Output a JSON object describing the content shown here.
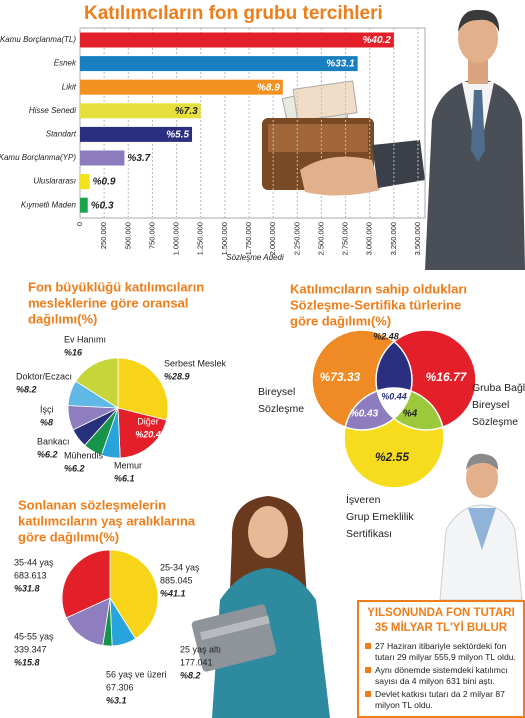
{
  "chart_data": [
    {
      "type": "bar",
      "title": "Katılımcıların fon grubu tercihleri",
      "categories": [
        "Kamu Borçlanma(TL)",
        "Esnek",
        "Likit",
        "Hisse Senedi",
        "Standart",
        "Kamu Borçlanma(YP)",
        "Uluslararası",
        "Kıymetli Maden"
      ],
      "values": [
        3250000,
        2875000,
        2100000,
        1250000,
        1160000,
        460000,
        100000,
        80000
      ],
      "share_labels": [
        "%40.2",
        "%33.1",
        "%8.9",
        "%7.3",
        "%5.5",
        "%3.7",
        "%0.9",
        "%0.3"
      ],
      "colors": [
        "#e3202a",
        "#1a7fc1",
        "#f39121",
        "#e4df3a",
        "#2b2f7f",
        "#8c7bbd",
        "#f3e21a",
        "#1ba34a"
      ],
      "xlabel": "Sözleşme Adedi",
      "xlim": [
        0,
        3500000
      ],
      "xticks": [
        0,
        {
          "value": 250000,
          "label": "250.000"
        },
        {
          "value": 500000,
          "label": "500.000"
        },
        {
          "value": 750000,
          "label": "750.000"
        },
        {
          "value": 1000000,
          "label": "1.000.000"
        },
        {
          "value": 1250000,
          "label": "1.250.000"
        },
        {
          "value": 1500000,
          "label": "1.500.000"
        },
        {
          "value": 1750000,
          "label": "1.750.000"
        },
        {
          "value": 2000000,
          "label": "2.000.000"
        },
        {
          "value": 2250000,
          "label": "2.250.000"
        },
        {
          "value": 2500000,
          "label": "2.500.000"
        },
        {
          "value": 2750000,
          "label": "2.750.000"
        },
        {
          "value": 3000000,
          "label": "3.000.000"
        },
        {
          "value": 3250000,
          "label": "3.250.000"
        },
        {
          "value": 3500000,
          "label": "3.500.000"
        }
      ],
      "grid": true
    },
    {
      "type": "pie",
      "title": [
        "Fon büyüklüğü katılımcıların",
        "mesleklerine göre oransal",
        "dağılımı(%)"
      ],
      "categories": [
        "Serbest Meslek",
        "Diğer",
        "Memur",
        "Mühendis",
        "Bankacı",
        "İşçi",
        "Doktor/Eczacı",
        "Ev Hanımı"
      ],
      "values": [
        28.9,
        20.4,
        6.1,
        6.2,
        6.2,
        8,
        8.2,
        16
      ],
      "value_labels": [
        "%28.9",
        "%20.4",
        "%6.1",
        "%6.2",
        "%6.2",
        "%8",
        "%8.2",
        "%16"
      ],
      "colors": [
        "#f7d417",
        "#e3202a",
        "#29a3dc",
        "#17944a",
        "#27307a",
        "#8e7dbf",
        "#5fb8e6",
        "#c6d63a"
      ]
    },
    {
      "type": "venn",
      "title": [
        "Katılımcıların sahip oldukları",
        "Sözleşme-Sertifika türlerine",
        "göre dağılımı(%)"
      ],
      "sets": [
        [
          "Bireysel",
          "Sözleşme"
        ],
        [
          "Gruba Bağlı",
          "Bireysel",
          "Sözleşme"
        ],
        [
          "İşveren",
          "Grup Emeklilik",
          "Sertifikası"
        ]
      ],
      "values": [
        73.33,
        16.77,
        2.55,
        2.48,
        0.43,
        4,
        0.44
      ],
      "value_labels": [
        "%73.33",
        "%16.77",
        "%2.55",
        "%2.48",
        "%0.43",
        "%4",
        "%0.44"
      ],
      "colors": [
        "#f08a24",
        "#e3202a",
        "#f7dc1e",
        "#2a2f7f",
        "#8d7dbf",
        "#9cc93b",
        "#ffffff"
      ]
    },
    {
      "type": "pie",
      "title": [
        "Sonlanan sözleşmelerin",
        "katılımcıların yaş aralıklarına",
        "göre dağılımı(%)"
      ],
      "categories": [
        "25-34 yaş",
        "25 yaş altı",
        "56 yaş ve üzeri",
        "45-55 yaş",
        "35-44 yaş"
      ],
      "count_labels": [
        "885.045",
        "177.041",
        "67.306",
        "339.347",
        "683.613"
      ],
      "values": [
        41.1,
        8.2,
        3.1,
        15.8,
        31.8
      ],
      "value_labels": [
        "%41.1",
        "%8.2",
        "%3.1",
        "%15.8",
        "%31.8"
      ],
      "colors": [
        "#f7d417",
        "#29a3dc",
        "#17944a",
        "#8e7dbf",
        "#e3202a"
      ]
    }
  ],
  "news_box": {
    "title": [
      "YILSONUNDA FON TUTARI",
      "35 MİLYAR TL'Yİ BULUR"
    ],
    "bullets": [
      "27 Haziran itibariyle sektördeki fon tutarı 29 milyar 555,9 milyon TL oldu.",
      "Aynı dönemde sistemdeki katılımcı sayısı da 4 milyon 631 bini aştı.",
      "Devlet katkısı tutarı da 2 milyar 87 milyon TL oldu."
    ]
  }
}
